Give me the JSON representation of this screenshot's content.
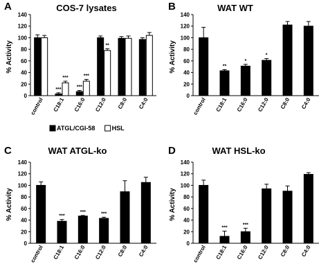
{
  "chart_data": [
    {
      "type": "bar",
      "panel": "A",
      "title": "COS-7 lysates",
      "ylabel": "% Activity",
      "ylim": [
        0,
        140
      ],
      "yticks": [
        0,
        20,
        40,
        60,
        80,
        100,
        120,
        140
      ],
      "categories": [
        "control",
        "C18:1",
        "C16:0",
        "C12:0",
        "C8:0",
        "C4:0"
      ],
      "series": [
        {
          "name": "ATGL/CGI-58",
          "color": "#000000",
          "values": [
            100,
            3,
            7,
            100,
            99,
            97
          ],
          "errors": [
            5,
            2,
            2,
            3,
            3,
            3
          ]
        },
        {
          "name": "HSL",
          "color": "#ffffff",
          "values": [
            100,
            22,
            25,
            78,
            99,
            104
          ],
          "errors": [
            4,
            3,
            3,
            3,
            4,
            5
          ]
        }
      ],
      "annotations": [
        {
          "category": "C18:1",
          "series": 0,
          "text": "***"
        },
        {
          "category": "C18:1",
          "series": 1,
          "text": "***"
        },
        {
          "category": "C16:0",
          "series": 0,
          "text": "***"
        },
        {
          "category": "C16:0",
          "series": 1,
          "text": "***"
        },
        {
          "category": "C12:0",
          "series": 1,
          "text": "**"
        }
      ],
      "legend": "bottom"
    },
    {
      "type": "bar",
      "panel": "B",
      "title": "WAT WT",
      "ylabel": "% Activity",
      "ylim": [
        0,
        140
      ],
      "yticks": [
        0,
        20,
        40,
        60,
        80,
        100,
        120,
        140
      ],
      "categories": [
        "control",
        "C18:1",
        "C16:0",
        "C12:0",
        "C8:0",
        "C4:0"
      ],
      "series": [
        {
          "name": "",
          "color": "#000000",
          "values": [
            100,
            43,
            51,
            61,
            122,
            120
          ],
          "errors": [
            18,
            2,
            3,
            3,
            6,
            8
          ]
        }
      ],
      "annotations": [
        {
          "category": "C18:1",
          "series": 0,
          "text": "**"
        },
        {
          "category": "C16:0",
          "series": 0,
          "text": "*"
        },
        {
          "category": "C12:0",
          "series": 0,
          "text": "*"
        }
      ]
    },
    {
      "type": "bar",
      "panel": "C",
      "title": "WAT ATGL-ko",
      "ylabel": "% Activity",
      "ylim": [
        0,
        140
      ],
      "yticks": [
        0,
        20,
        40,
        60,
        80,
        100,
        120,
        140
      ],
      "categories": [
        "control",
        "C18:1",
        "C16:0",
        "C12:0",
        "C8:0",
        "C4:0"
      ],
      "series": [
        {
          "name": "",
          "color": "#000000",
          "values": [
            100,
            38,
            47,
            43,
            89,
            105
          ],
          "errors": [
            6,
            3,
            1,
            2,
            19,
            9
          ]
        }
      ],
      "annotations": [
        {
          "category": "C18:1",
          "series": 0,
          "text": "***"
        },
        {
          "category": "C16:0",
          "series": 0,
          "text": "***"
        },
        {
          "category": "C12:0",
          "series": 0,
          "text": "***"
        }
      ]
    },
    {
      "type": "bar",
      "panel": "D",
      "title": "WAT HSL-ko",
      "ylabel": "% Activity",
      "ylim": [
        0,
        140
      ],
      "yticks": [
        0,
        20,
        40,
        60,
        80,
        100,
        120,
        140
      ],
      "categories": [
        "control",
        "C18:1",
        "C16:0",
        "C12:0",
        "C8:0",
        "C4:0"
      ],
      "series": [
        {
          "name": "",
          "color": "#000000",
          "values": [
            100,
            12,
            20,
            94,
            90,
            119
          ],
          "errors": [
            9,
            9,
            6,
            8,
            9,
            3
          ]
        }
      ],
      "annotations": [
        {
          "category": "C18:1",
          "series": 0,
          "text": "***"
        },
        {
          "category": "C16:0",
          "series": 0,
          "text": "***"
        }
      ]
    }
  ]
}
